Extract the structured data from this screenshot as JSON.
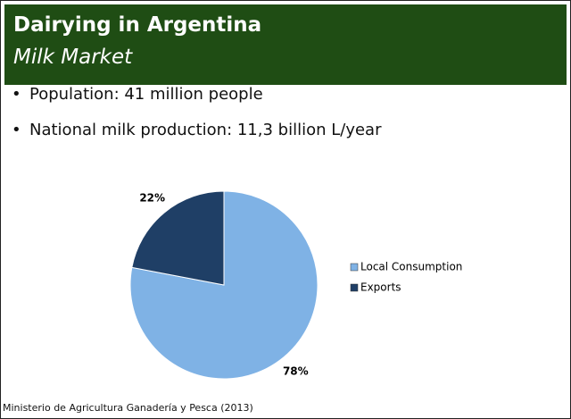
{
  "header": {
    "title": "Dairying in Argentina",
    "subtitle": "Milk Market"
  },
  "bullets": [
    "Population: 41 million people",
    "National milk production: 11,3 billion L/year"
  ],
  "chart_data": {
    "type": "pie",
    "categories": [
      "Local Consumption",
      "Exports"
    ],
    "values": [
      78,
      22
    ],
    "value_labels": [
      "78%",
      "22%"
    ],
    "colors": [
      "#7fb2e5",
      "#1f3f66"
    ],
    "legend": "right"
  },
  "source": "Ministerio de Agricultura Ganadería y Pesca (2013)"
}
